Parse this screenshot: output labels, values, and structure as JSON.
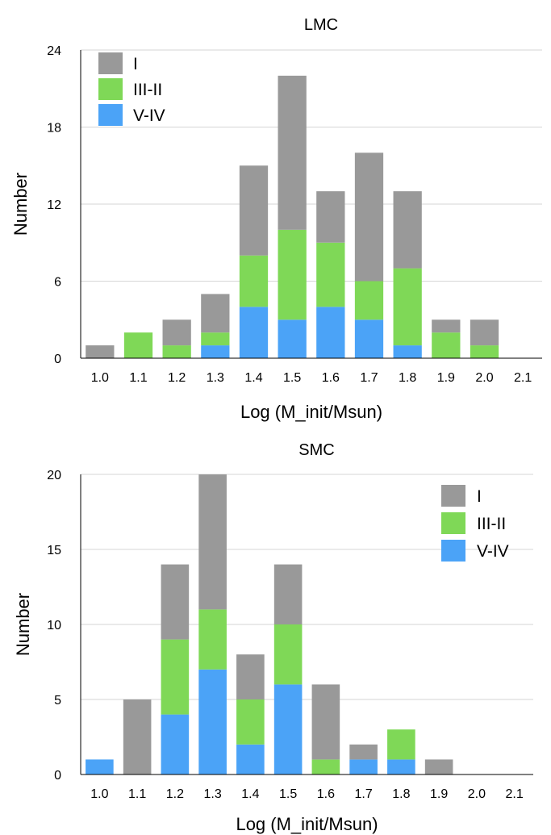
{
  "chart_data": [
    {
      "type": "bar",
      "stacked": true,
      "title": "LMC",
      "xlabel": "Log (M_init/Msun)",
      "ylabel": "Number",
      "categories": [
        "1.0",
        "1.1",
        "1.2",
        "1.3",
        "1.4",
        "1.5",
        "1.6",
        "1.7",
        "1.8",
        "1.9",
        "2.0",
        "2.1"
      ],
      "yticks": [
        "0",
        "6",
        "12",
        "18",
        "24"
      ],
      "ylim": [
        0,
        24
      ],
      "grid": true,
      "legend_position": "top-left",
      "legend_order": [
        "I",
        "III-II",
        "V-IV"
      ],
      "series": [
        {
          "name": "V-IV",
          "color": "#4ba3f7",
          "values": [
            0,
            0,
            0,
            1,
            4,
            3,
            4,
            3,
            1,
            0,
            0,
            0
          ]
        },
        {
          "name": "III-II",
          "color": "#7fd857",
          "values": [
            0,
            2,
            1,
            1,
            4,
            7,
            5,
            3,
            6,
            2,
            1,
            0
          ]
        },
        {
          "name": "I",
          "color": "#999999",
          "values": [
            1,
            0,
            2,
            3,
            7,
            12,
            4,
            10,
            6,
            1,
            2,
            0
          ]
        }
      ]
    },
    {
      "type": "bar",
      "stacked": true,
      "title": "SMC",
      "xlabel": "Log (M_init/Msun)",
      "ylabel": "Number",
      "categories": [
        "1.0",
        "1.1",
        "1.2",
        "1.3",
        "1.4",
        "1.5",
        "1.6",
        "1.7",
        "1.8",
        "1.9",
        "2.0",
        "2.1"
      ],
      "yticks": [
        "0",
        "5",
        "10",
        "15",
        "20"
      ],
      "ylim": [
        0,
        20
      ],
      "grid": true,
      "legend_position": "top-right",
      "legend_order": [
        "I",
        "III-II",
        "V-IV"
      ],
      "series": [
        {
          "name": "V-IV",
          "color": "#4ba3f7",
          "values": [
            1,
            0,
            4,
            7,
            2,
            6,
            0,
            1,
            1,
            0,
            0,
            0
          ]
        },
        {
          "name": "III-II",
          "color": "#7fd857",
          "values": [
            0,
            0,
            5,
            4,
            3,
            4,
            1,
            0,
            2,
            0,
            0,
            0
          ]
        },
        {
          "name": "I",
          "color": "#999999",
          "values": [
            0,
            5,
            5,
            9,
            3,
            4,
            5,
            1,
            0,
            1,
            0,
            0
          ]
        }
      ]
    }
  ]
}
